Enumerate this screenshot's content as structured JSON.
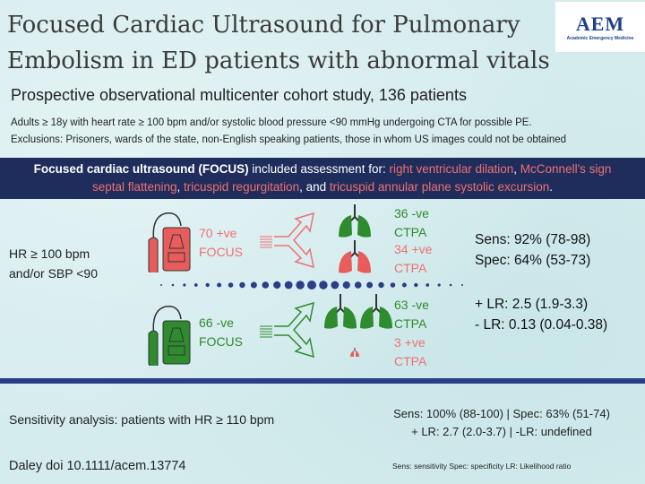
{
  "title": "Focused Cardiac Ultrasound for Pulmonary Embolism in ED patients with abnormal vitals",
  "logo": {
    "text": "AEM",
    "subtext": "Academic Emergency Medicine"
  },
  "subtitle": "Prospective observational multicenter cohort study, 136 patients",
  "inclusion": "Adults ≥ 18y with heart rate ≥ 100 bpm and/or systolic blood pressure <90 mmHg undergoing CTA  for possible PE.",
  "exclusion": "Exclusions: Prisoners, wards of the state, non-English speaking patients, those in whom US images could not be obtained",
  "banner": {
    "bold": "Focused cardiac ultrasound (FOCUS)",
    "text1": " included assessment for: ",
    "item1": "right ventricular dilation",
    "sep1": ", ",
    "item2": "McConnell's sign",
    "sep2": ", ",
    "item3": "septal flattening",
    "sep3": ", ",
    "item4": "tricuspid regurgitation",
    "sep4": ", and ",
    "item5": "tricuspid annular plane systolic excursion",
    "end": "."
  },
  "population": {
    "line1": "HR ≥ 100 bpm",
    "line2": "and/or SBP <90"
  },
  "positive": {
    "focus1": "70 +ve",
    "focus2": "FOCUS",
    "neg1": "36 -ve",
    "neg2": "CTPA",
    "pos1": "34 +ve",
    "pos2": "CTPA"
  },
  "negative": {
    "focus1": "66 -ve",
    "focus2": "FOCUS",
    "neg1": "63 -ve",
    "neg2": "CTPA",
    "pos1": "3 +ve",
    "pos2": "CTPA"
  },
  "stats": {
    "sens": "Sens: 92% (78-98)",
    "spec": "Spec: 64% (53-73)",
    "plr": "+ LR: 2.5 (1.9-3.3)",
    "nlr": "- LR: 0.13 (0.04-0.38)"
  },
  "sensitivity": {
    "label": "Sensitivity analysis: patients with HR ≥ 110 bpm",
    "line1": "Sens: 100% (88-100) | Spec: 63% (51-74)",
    "line2": "+ LR: 2.7 (2.0-3.7) | -LR: undefined"
  },
  "citation": "Daley doi 10.1111/acem.13774",
  "footnote": "Sens: sensitivity Spec: specificity LR: Likelihood ratio",
  "colors": {
    "positive": "#f07070",
    "negative": "#2e8b2e",
    "banner": "#1e2d5c",
    "divider": "#2a3f88"
  }
}
